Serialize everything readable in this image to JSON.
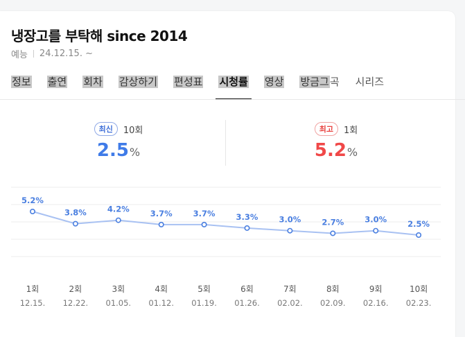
{
  "header": {
    "title": "냉장고를 부탁해 since 2014",
    "genre": "예능",
    "date": "24.12.15. ~"
  },
  "tabs": [
    {
      "label": "정보",
      "active": false
    },
    {
      "label": "출연",
      "active": false
    },
    {
      "label": "회차",
      "active": false
    },
    {
      "label": "감상하기",
      "active": false
    },
    {
      "label": "편성표",
      "active": false
    },
    {
      "label": "시청률",
      "active": true
    },
    {
      "label": "영상",
      "active": false
    },
    {
      "label": "방금그",
      "active": false,
      "suffix": "곡"
    },
    {
      "label": "시리즈",
      "active": false
    }
  ],
  "latest": {
    "badge": "최신",
    "episode": "10회",
    "value": "2.5",
    "unit": "%"
  },
  "highest": {
    "badge": "최고",
    "episode": "1회",
    "value": "5.2",
    "unit": "%"
  },
  "colors": {
    "latest": "#3f7be8",
    "highest": "#f04848",
    "line": "#a8c1f2",
    "point": "#4a7fe0"
  },
  "chart_data": {
    "type": "line",
    "categories": [
      "1회",
      "2회",
      "3회",
      "4회",
      "5회",
      "6회",
      "7회",
      "8회",
      "9회",
      "10회"
    ],
    "dates": [
      "12.15.",
      "12.22.",
      "01.05.",
      "01.12.",
      "01.19.",
      "01.26.",
      "02.02.",
      "02.09.",
      "02.16.",
      "02.23."
    ],
    "values": [
      5.2,
      3.8,
      4.2,
      3.7,
      3.7,
      3.3,
      3.0,
      2.7,
      3.0,
      2.5
    ],
    "labels": [
      "5.2%",
      "3.8%",
      "4.2%",
      "3.7%",
      "3.7%",
      "3.3%",
      "3.0%",
      "2.7%",
      "3.0%",
      "2.5%"
    ],
    "unit": "%",
    "grid": true
  }
}
